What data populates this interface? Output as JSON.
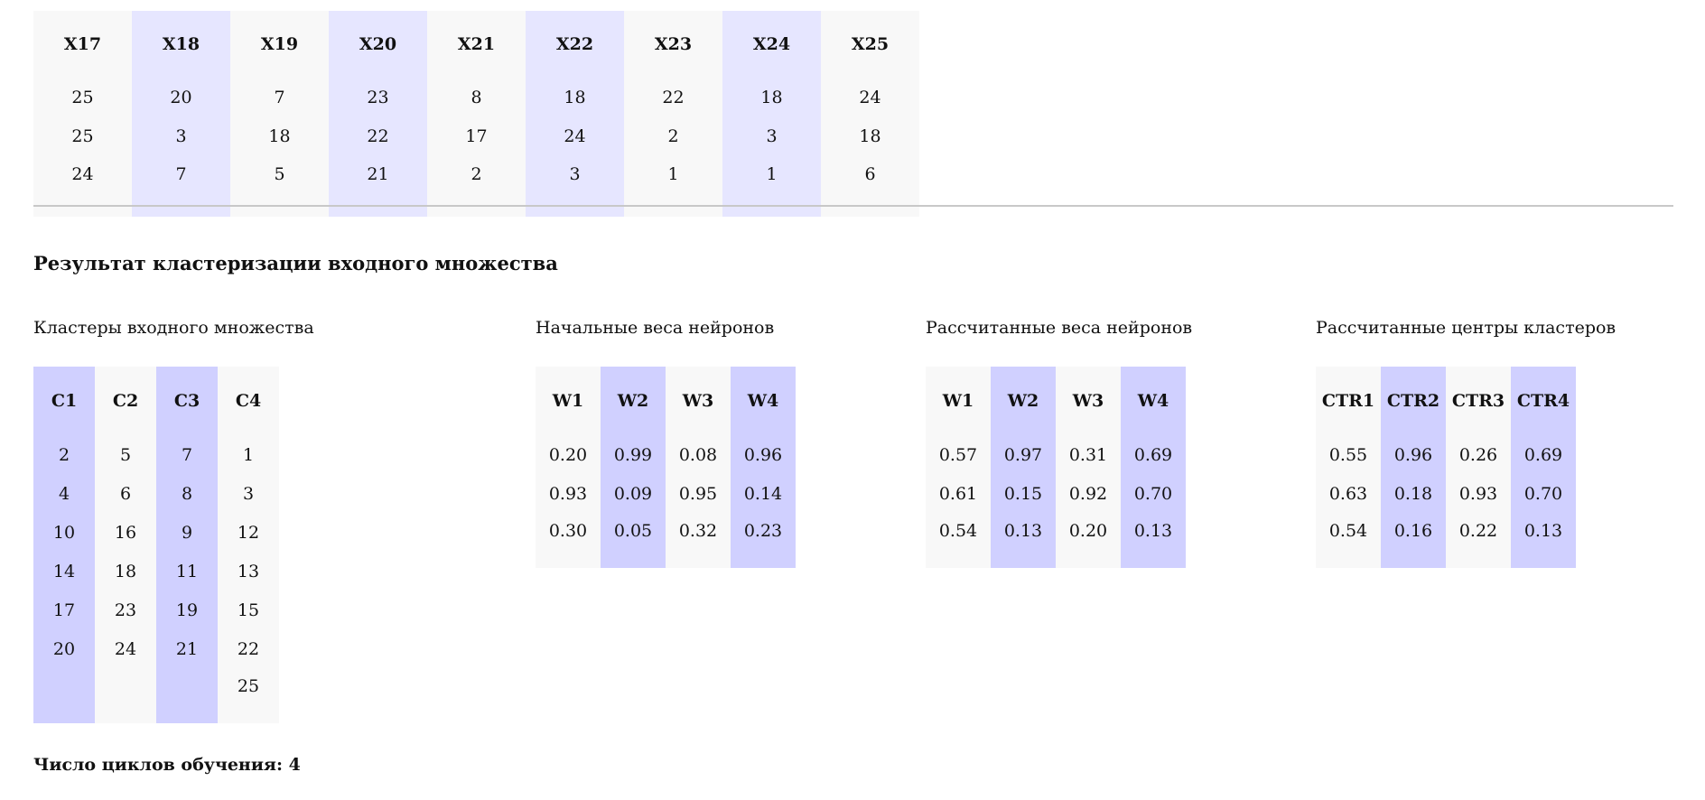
{
  "input_table": {
    "headers": [
      "X17",
      "X18",
      "X19",
      "X20",
      "X21",
      "X22",
      "X23",
      "X24",
      "X25"
    ],
    "rows": [
      [
        "25",
        "20",
        "7",
        "23",
        "8",
        "18",
        "22",
        "18",
        "24"
      ],
      [
        "25",
        "3",
        "18",
        "22",
        "17",
        "24",
        "2",
        "3",
        "18"
      ],
      [
        "24",
        "7",
        "5",
        "21",
        "2",
        "3",
        "1",
        "1",
        "6"
      ]
    ]
  },
  "section_title": "Результат кластеризации входного множества",
  "clusters": {
    "title": "Кластеры входного множества",
    "headers": [
      "C1",
      "C2",
      "C3",
      "C4"
    ],
    "rows": [
      [
        "2",
        "5",
        "7",
        "1"
      ],
      [
        "4",
        "6",
        "8",
        "3"
      ],
      [
        "10",
        "16",
        "9",
        "12"
      ],
      [
        "14",
        "18",
        "11",
        "13"
      ],
      [
        "17",
        "23",
        "19",
        "15"
      ],
      [
        "20",
        "24",
        "21",
        "22"
      ],
      [
        "",
        "",
        "",
        "25"
      ]
    ]
  },
  "initial_weights": {
    "title": "Начальные веса нейронов",
    "headers": [
      "W1",
      "W2",
      "W3",
      "W4"
    ],
    "rows": [
      [
        "0.20",
        "0.99",
        "0.08",
        "0.96"
      ],
      [
        "0.93",
        "0.09",
        "0.95",
        "0.14"
      ],
      [
        "0.30",
        "0.05",
        "0.32",
        "0.23"
      ]
    ]
  },
  "calculated_weights": {
    "title": "Рассчитанные веса нейронов",
    "headers": [
      "W1",
      "W2",
      "W3",
      "W4"
    ],
    "rows": [
      [
        "0.57",
        "0.97",
        "0.31",
        "0.69"
      ],
      [
        "0.61",
        "0.15",
        "0.92",
        "0.70"
      ],
      [
        "0.54",
        "0.13",
        "0.20",
        "0.13"
      ]
    ]
  },
  "cluster_centers": {
    "title": "Рассчитанные центры кластеров",
    "headers": [
      "CTR1",
      "CTR2",
      "CTR3",
      "CTR4"
    ],
    "rows": [
      [
        "0.55",
        "0.96",
        "0.26",
        "0.69"
      ],
      [
        "0.63",
        "0.18",
        "0.93",
        "0.70"
      ],
      [
        "0.54",
        "0.16",
        "0.22",
        "0.13"
      ]
    ]
  },
  "footer": {
    "label": "Число циклов обучения:",
    "value": "4"
  },
  "colors": {
    "column_grey": "#f8f8f8",
    "column_lavender": "#e6e6ff",
    "column_blue": "#d0d0ff",
    "divider": "#c8c8c8"
  }
}
